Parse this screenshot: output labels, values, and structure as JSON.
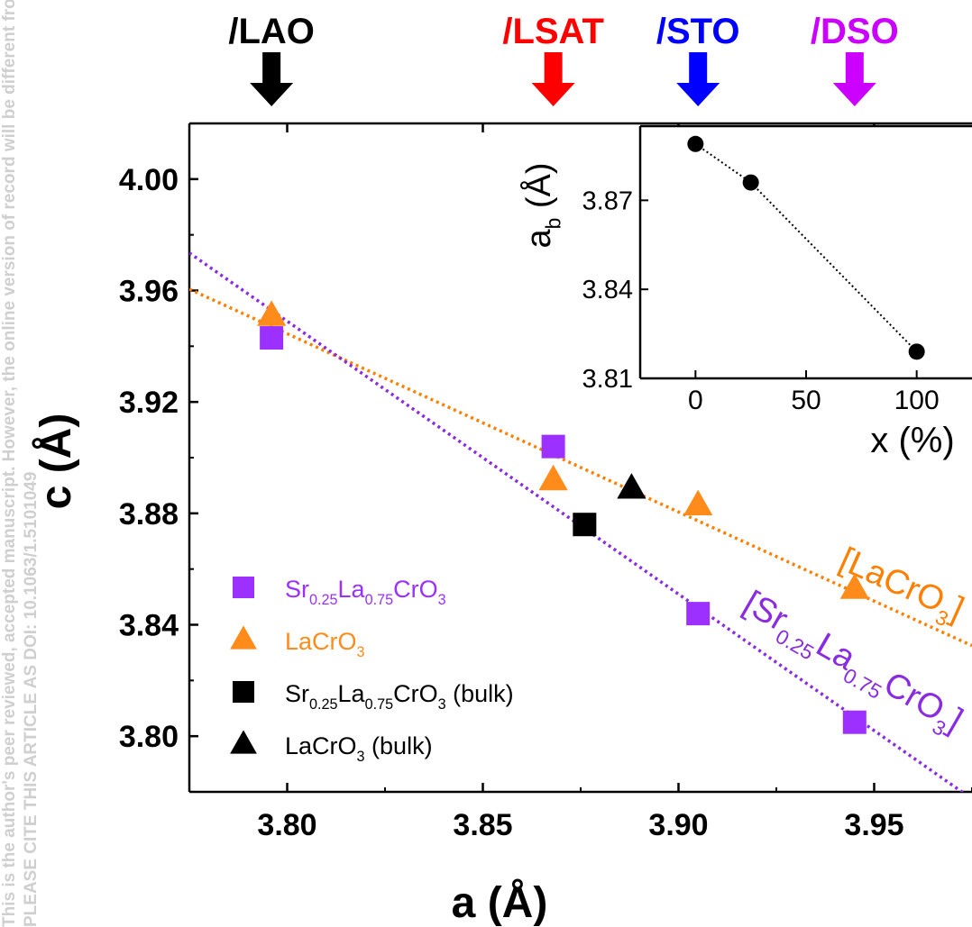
{
  "watermark": {
    "line1": "This is the author's peer reviewed, accepted manuscript. However, the online version of record will be different from this version once it has been copyedited and typeset.",
    "line2": "PLEASE CITE THIS ARTICLE AS DOI: 10.1063/1.5101049"
  },
  "chart_data": {
    "type": "scatter",
    "xlabel": "a (Å)",
    "ylabel": "c (Å)",
    "xlim": [
      3.775,
      3.975
    ],
    "ylim": [
      3.78,
      4.02
    ],
    "xticks": [
      "3.80",
      "3.85",
      "3.90",
      "3.95"
    ],
    "yticks": [
      "3.80",
      "3.84",
      "3.88",
      "3.92",
      "3.96",
      "4.00"
    ],
    "substrates": [
      {
        "label": "/LAO",
        "a": 3.796,
        "color": "#000000"
      },
      {
        "label": "/LSAT",
        "a": 3.868,
        "color": "#ff0000"
      },
      {
        "label": "/STO",
        "a": 3.905,
        "color": "#0000ff"
      },
      {
        "label": "/DSO",
        "a": 3.945,
        "color": "#cc00ff"
      }
    ],
    "series": [
      {
        "name": "Sr0.25La0.75CrO3",
        "marker": "square",
        "color": "#9b30ff",
        "points": [
          [
            3.796,
            3.943
          ],
          [
            3.868,
            3.904
          ],
          [
            3.905,
            3.844
          ],
          [
            3.945,
            3.805
          ]
        ]
      },
      {
        "name": "LaCrO3",
        "marker": "triangle",
        "color": "#ff8c1a",
        "points": [
          [
            3.796,
            3.951
          ],
          [
            3.868,
            3.892
          ],
          [
            3.905,
            3.883
          ],
          [
            3.945,
            3.853
          ]
        ]
      },
      {
        "name": "Sr0.25La0.75CrO3 (bulk)",
        "marker": "square",
        "color": "#000000",
        "points": [
          [
            3.876,
            3.876
          ]
        ]
      },
      {
        "name": "LaCrO3 (bulk)",
        "marker": "triangle",
        "color": "#000000",
        "points": [
          [
            3.888,
            3.889
          ]
        ]
      }
    ],
    "fit_lines": [
      {
        "series": "LaCrO3",
        "color": "#ff7f00",
        "from": [
          3.775,
          3.9605
        ],
        "to": [
          3.975,
          3.8325
        ],
        "label_base": "[LaCrO",
        "label_sub": "3",
        "label_end": "]"
      },
      {
        "series": "Sr0.25La0.75CrO3",
        "color": "#8a2be2",
        "from": [
          3.775,
          3.9735
        ],
        "to": [
          3.975,
          3.7775
        ],
        "label_parts": [
          [
            "[Sr",
            ""
          ],
          [
            "0.25",
            "sub"
          ],
          [
            "La",
            ""
          ],
          [
            "0.75",
            "sub"
          ],
          [
            "CrO",
            ""
          ],
          [
            "3",
            "sub"
          ],
          [
            "]",
            ""
          ]
        ]
      }
    ],
    "legend": [
      {
        "marker": "square",
        "color": "#9b30ff",
        "text_color": "#9b30ff",
        "parts": [
          [
            "Sr",
            ""
          ],
          [
            "0.25",
            "sub"
          ],
          [
            "La",
            ""
          ],
          [
            "0.75",
            "sub"
          ],
          [
            "CrO",
            ""
          ],
          [
            "3",
            "sub"
          ]
        ]
      },
      {
        "marker": "triangle",
        "color": "#ff8c1a",
        "text_color": "#ff8c1a",
        "parts": [
          [
            "LaCrO",
            ""
          ],
          [
            "3",
            "sub"
          ]
        ]
      },
      {
        "marker": "square",
        "color": "#000000",
        "text_color": "#000000",
        "parts": [
          [
            "Sr",
            ""
          ],
          [
            "0.25",
            "sub"
          ],
          [
            "La",
            ""
          ],
          [
            "0.75",
            "sub"
          ],
          [
            "CrO",
            ""
          ],
          [
            "3",
            "sub"
          ],
          [
            " (bulk)",
            ""
          ]
        ]
      },
      {
        "marker": "triangle",
        "color": "#000000",
        "text_color": "#000000",
        "parts": [
          [
            "LaCrO",
            ""
          ],
          [
            "3",
            "sub"
          ],
          [
            " (bulk)",
            ""
          ]
        ]
      }
    ],
    "inset": {
      "type": "line",
      "xlabel": "x (%)",
      "ylabel_base": "a",
      "ylabel_sub": "b",
      "ylabel_end": " (Å)",
      "xlim": [
        -25,
        125
      ],
      "ylim": [
        3.81,
        3.895
      ],
      "xticks": [
        "0",
        "50",
        "100"
      ],
      "yticks": [
        "3.81",
        "3.84",
        "3.87"
      ],
      "x": [
        0,
        25,
        100
      ],
      "y": [
        3.889,
        3.876,
        3.819
      ]
    }
  }
}
